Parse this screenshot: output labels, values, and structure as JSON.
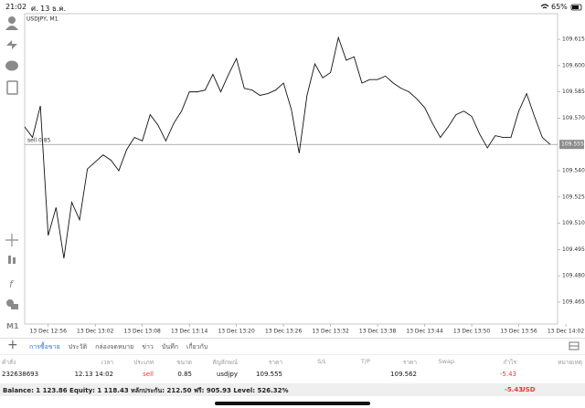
{
  "status_bar": {
    "time": "21:02",
    "date": "ศ. 13 ธ.ค.",
    "battery": "65%"
  },
  "toolbar": {
    "timeframe": "M1"
  },
  "chart_data": {
    "type": "line",
    "title": "USDJPY, M1",
    "color": "#111111",
    "x": [
      "13 Dec 12:53",
      "13 Dec 12:54",
      "13 Dec 12:55",
      "13 Dec 12:56",
      "13 Dec 12:57",
      "13 Dec 12:58",
      "13 Dec 12:59",
      "13 Dec 13:00",
      "13 Dec 13:01",
      "13 Dec 13:02",
      "13 Dec 13:03",
      "13 Dec 13:04",
      "13 Dec 13:05",
      "13 Dec 13:06",
      "13 Dec 13:07",
      "13 Dec 13:08",
      "13 Dec 13:09",
      "13 Dec 13:10",
      "13 Dec 13:11",
      "13 Dec 13:12",
      "13 Dec 13:13",
      "13 Dec 13:14",
      "13 Dec 13:15",
      "13 Dec 13:16",
      "13 Dec 13:17",
      "13 Dec 13:18",
      "13 Dec 13:19",
      "13 Dec 13:20",
      "13 Dec 13:21",
      "13 Dec 13:22",
      "13 Dec 13:23",
      "13 Dec 13:24",
      "13 Dec 13:25",
      "13 Dec 13:26",
      "13 Dec 13:27",
      "13 Dec 13:28",
      "13 Dec 13:29",
      "13 Dec 13:30",
      "13 Dec 13:31",
      "13 Dec 13:32",
      "13 Dec 13:33",
      "13 Dec 13:34",
      "13 Dec 13:35",
      "13 Dec 13:36",
      "13 Dec 13:37",
      "13 Dec 13:38",
      "13 Dec 13:39",
      "13 Dec 13:40",
      "13 Dec 13:41",
      "13 Dec 13:42",
      "13 Dec 13:43",
      "13 Dec 13:44",
      "13 Dec 13:45",
      "13 Dec 13:46",
      "13 Dec 13:47",
      "13 Dec 13:48",
      "13 Dec 13:49",
      "13 Dec 13:50",
      "13 Dec 13:51",
      "13 Dec 13:52",
      "13 Dec 13:53",
      "13 Dec 13:54",
      "13 Dec 13:55",
      "13 Dec 13:56",
      "13 Dec 13:57",
      "13 Dec 13:58",
      "13 Dec 13:59",
      "13 Dec 14:00"
    ],
    "values": [
      109.565,
      109.559,
      109.577,
      109.503,
      109.519,
      109.49,
      109.522,
      109.512,
      109.541,
      109.545,
      109.549,
      109.546,
      109.54,
      109.552,
      109.559,
      109.557,
      109.572,
      109.566,
      109.557,
      109.567,
      109.574,
      109.585,
      109.585,
      109.586,
      109.595,
      109.585,
      109.595,
      109.604,
      109.587,
      109.586,
      109.583,
      109.584,
      109.586,
      109.59,
      109.575,
      109.55,
      109.583,
      109.601,
      109.593,
      109.596,
      109.616,
      109.603,
      109.605,
      109.59,
      109.592,
      109.592,
      109.594,
      109.59,
      109.587,
      109.585,
      109.581,
      109.576,
      109.567,
      109.559,
      109.565,
      109.572,
      109.574,
      109.571,
      109.561,
      109.553,
      109.56,
      109.559,
      109.559,
      109.574,
      109.584,
      109.571,
      109.559,
      109.555
    ],
    "xticks": [
      "13 Dec 12:56",
      "13 Dec 13:02",
      "13 Dec 13:08",
      "13 Dec 13:14",
      "13 Dec 13:20",
      "13 Dec 13:26",
      "13 Dec 13:32",
      "13 Dec 13:38",
      "13 Dec 13:44",
      "13 Dec 13:50",
      "13 Dec 13:56",
      "13 Dec 14:02"
    ],
    "ylim": [
      109.4525,
      109.6296
    ],
    "yticks": [
      109.465,
      {
        "value": 109.48,
        "label": "109.480"
      },
      109.495,
      {
        "value": 109.51,
        "label": "109.510"
      },
      109.525,
      {
        "value": 109.54,
        "label": "109.540"
      },
      {
        "value": 109.57,
        "label": "109.570"
      },
      109.585,
      {
        "value": 109.6,
        "label": "109.600"
      },
      109.615
    ],
    "order_line": {
      "label": "sell 0.85",
      "value": 109.555
    }
  },
  "tabs": [
    "การซื้อขาย",
    "ประวัติ",
    "กล่องจดหมาย",
    "ข่าว",
    "บันทึก",
    "เกี่ยวกับ"
  ],
  "table": {
    "header": {
      "order": "คำสั่ง",
      "time": "เวลา",
      "type": "ประเภท",
      "size": "ขนาด",
      "symbol": "สัญลักษณ์",
      "open_price": "ราคา",
      "sl": "S/L",
      "tp": "T/P",
      "price": "ราคา",
      "swap": "Swap",
      "profit": "กำไร",
      "comment": "หมายเหตุ"
    },
    "rows": [
      {
        "order": "232638693",
        "time": "12.13 14:02",
        "type": "sell",
        "size": "0.85",
        "symbol": "usdjpy",
        "open_price": "109.555",
        "price": "109.562",
        "profit": "-5.43"
      }
    ]
  },
  "summary": {
    "text": "Balance: 1 123.86 Equity: 1 118.43 หลักประกัน: 212.50 ฟรี: 905.93 Level: 526.32%",
    "profit": "-5.43",
    "currency": "USD"
  }
}
